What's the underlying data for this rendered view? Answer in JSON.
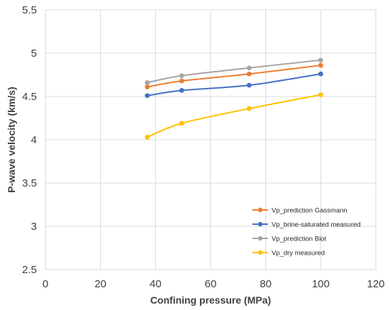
{
  "chart_data": {
    "type": "line",
    "title": "",
    "xlabel": "Confining pressure (MPa)",
    "ylabel": "P-wave velocity (km/s)",
    "xlim": [
      0,
      120
    ],
    "ylim": [
      2.5,
      5.5
    ],
    "xticks": [
      "0",
      "20",
      "40",
      "60",
      "80",
      "100",
      "120"
    ],
    "yticks": [
      "2.5",
      "3",
      "3.5",
      "4",
      "4.5",
      "5",
      "5.5"
    ],
    "grid": true,
    "legend_position": "bottom-right",
    "series": [
      {
        "name": "Vp_prediction Gassmann",
        "color": "#ED7D31",
        "x": [
          37,
          49.5,
          74,
          100
        ],
        "y": [
          4.61,
          4.68,
          4.76,
          4.86
        ]
      },
      {
        "name": "Vp_brine-saturated measured",
        "color": "#4472C4",
        "x": [
          37,
          49.5,
          74,
          100
        ],
        "y": [
          4.51,
          4.57,
          4.63,
          4.76
        ]
      },
      {
        "name": "Vp_prediction Biot",
        "color": "#A5A5A5",
        "x": [
          37,
          49.5,
          74,
          100
        ],
        "y": [
          4.66,
          4.74,
          4.83,
          4.92
        ]
      },
      {
        "name": "Vp_dry measured",
        "color": "#FFC000",
        "x": [
          37,
          49.5,
          74,
          100
        ],
        "y": [
          4.03,
          4.19,
          4.36,
          4.52
        ]
      }
    ]
  }
}
